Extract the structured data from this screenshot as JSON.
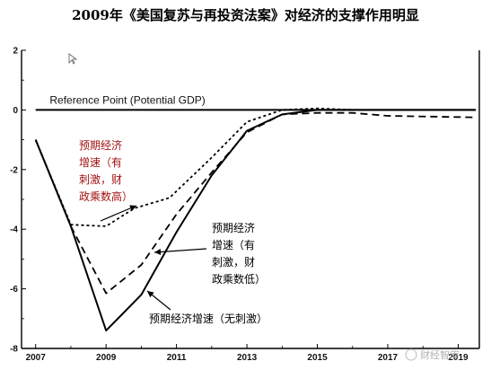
{
  "title": "2009年《美国复苏与再投资法案》对经济的支撑作用明显",
  "chart_data": {
    "type": "line",
    "xlim": [
      2006.6,
      2019.6
    ],
    "ylim": [
      -8,
      2
    ],
    "x_ticks": [
      "2007",
      "2009",
      "2011",
      "2013",
      "2015",
      "2017",
      "2019"
    ],
    "y_ticks": [
      "2",
      "0",
      "-2",
      "-4",
      "-6",
      "-8"
    ],
    "reference_line": {
      "label": "Reference Point (Potential GDP)",
      "value": 0
    },
    "series": [
      {
        "name": "预期经济增速（无刺激）",
        "style": "solid",
        "points": [
          [
            2007.0,
            -1.0
          ],
          [
            2008.0,
            -3.9
          ],
          [
            2009.0,
            -7.4
          ],
          [
            2010.0,
            -6.2
          ],
          [
            2011.0,
            -4.1
          ],
          [
            2012.0,
            -2.2
          ],
          [
            2013.0,
            -0.7
          ],
          [
            2014.0,
            -0.15
          ],
          [
            2015.0,
            0.0
          ],
          [
            2016.0,
            0.0
          ],
          [
            2017.0,
            0.0
          ],
          [
            2019.5,
            0.0
          ]
        ]
      },
      {
        "name": "预期经济增速（有刺激，财政乘数低）",
        "style": "dashed",
        "points": [
          [
            2007.0,
            -1.0
          ],
          [
            2008.0,
            -3.9
          ],
          [
            2009.0,
            -6.15
          ],
          [
            2010.0,
            -5.2
          ],
          [
            2011.0,
            -3.5
          ],
          [
            2012.0,
            -2.1
          ],
          [
            2013.0,
            -0.75
          ],
          [
            2014.0,
            -0.15
          ],
          [
            2015.0,
            -0.1
          ],
          [
            2016.0,
            -0.1
          ],
          [
            2017.0,
            -0.2
          ],
          [
            2019.5,
            -0.25
          ]
        ]
      },
      {
        "name": "预期经济增速（有刺激，财政乘数高）",
        "style": "dotted",
        "points": [
          [
            2007.0,
            -1.0
          ],
          [
            2008.0,
            -3.85
          ],
          [
            2009.0,
            -3.9
          ],
          [
            2009.8,
            -3.3
          ],
          [
            2010.8,
            -2.95
          ],
          [
            2012.0,
            -1.6
          ],
          [
            2013.0,
            -0.4
          ],
          [
            2014.0,
            0.0
          ],
          [
            2015.0,
            0.05
          ],
          [
            2016.0,
            0.0
          ],
          [
            2017.0,
            0.0
          ],
          [
            2019.5,
            0.0
          ]
        ]
      }
    ],
    "annotations": {
      "high": {
        "lines": [
          "预期经济",
          "增速（有",
          "刺激，财",
          "政乘数高）"
        ],
        "color": "#a31212"
      },
      "low": {
        "lines": [
          "预期经济",
          "增速（有",
          "刺激，财",
          "政乘数低）"
        ],
        "color": "#000000"
      },
      "none": {
        "lines": [
          "预期经济增速（无刺激）"
        ],
        "color": "#000000"
      }
    }
  },
  "watermark": "财经智库"
}
